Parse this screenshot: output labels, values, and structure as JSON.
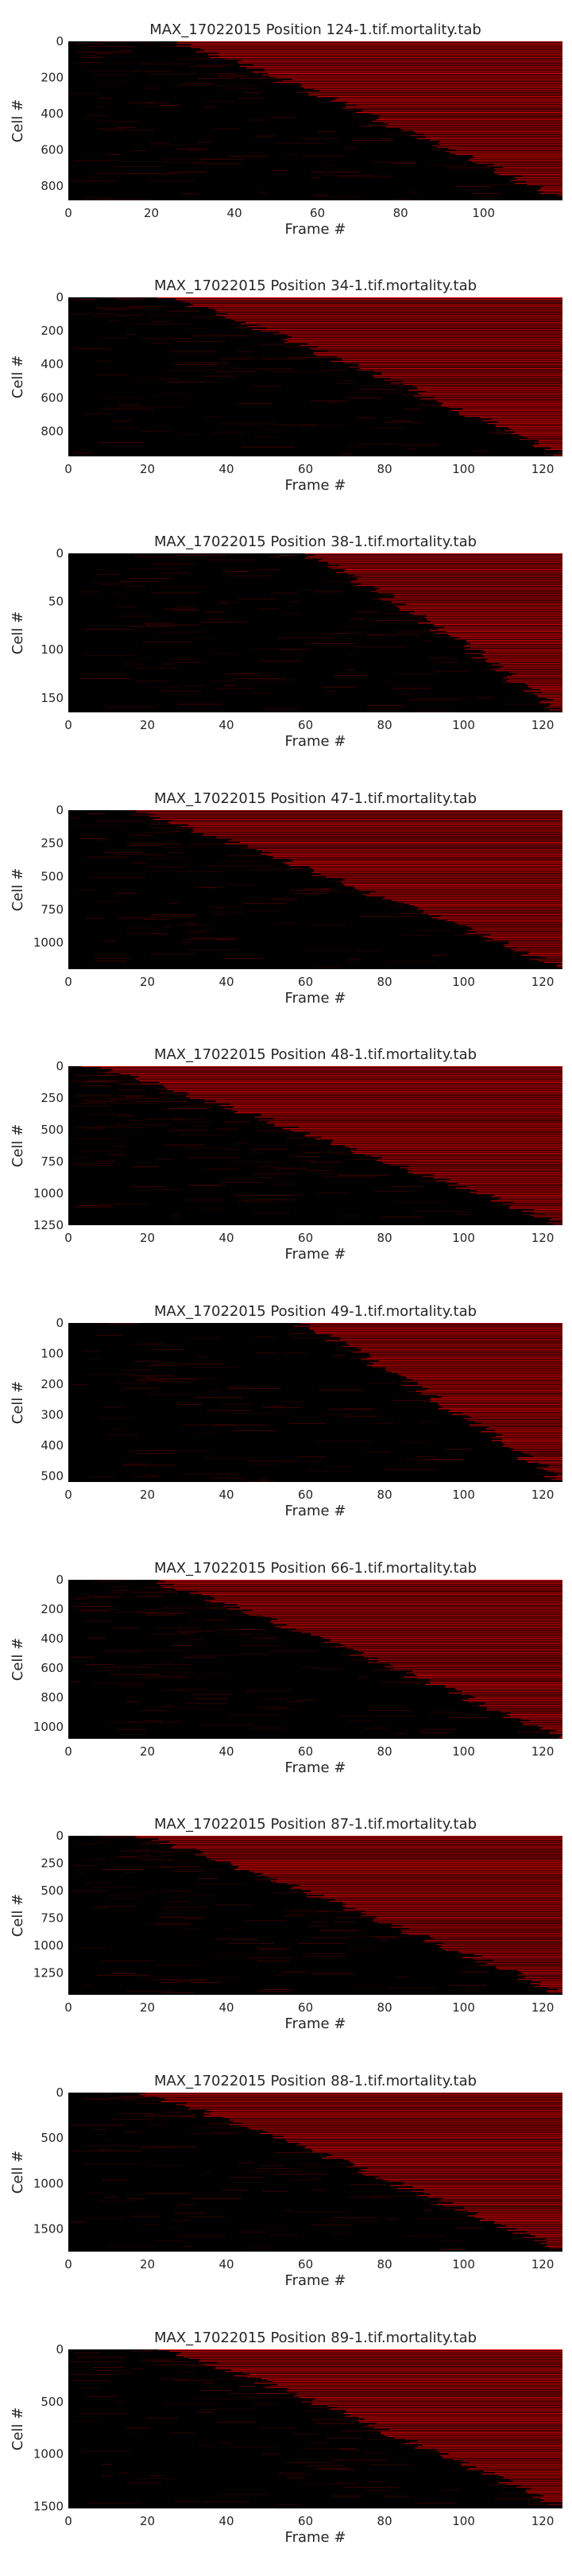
{
  "colors": {
    "background": "#000000",
    "signal": "#ff0000",
    "text": "#262626"
  },
  "chart_data": [
    {
      "type": "heatmap",
      "title": "MAX_17022015 Position 124-1.tif.mortality.tab",
      "xlabel": "Frame #",
      "ylabel": "Cell #",
      "xlim": [
        0,
        119
      ],
      "ylim": [
        0,
        880
      ],
      "x_ticks": [
        0,
        20,
        40,
        60,
        80,
        100
      ],
      "y_ticks": [
        0,
        200,
        400,
        600,
        800
      ],
      "death_frame_range": [
        25,
        119
      ]
    },
    {
      "type": "heatmap",
      "title": "MAX_17022015 Position 34-1.tif.mortality.tab",
      "xlabel": "Frame #",
      "ylabel": "Cell #",
      "xlim": [
        0,
        125
      ],
      "ylim": [
        0,
        950
      ],
      "x_ticks": [
        0,
        20,
        40,
        60,
        80,
        100,
        120
      ],
      "y_ticks": [
        0,
        200,
        400,
        600,
        800
      ],
      "death_frame_range": [
        25,
        125
      ]
    },
    {
      "type": "heatmap",
      "title": "MAX_17022015 Position 38-1.tif.mortality.tab",
      "xlabel": "Frame #",
      "ylabel": "Cell #",
      "xlim": [
        0,
        125
      ],
      "ylim": [
        0,
        165
      ],
      "x_ticks": [
        0,
        20,
        40,
        60,
        80,
        100,
        120
      ],
      "y_ticks": [
        0,
        50,
        100,
        150
      ],
      "death_frame_range": [
        60,
        125
      ]
    },
    {
      "type": "heatmap",
      "title": "MAX_17022015 Position 47-1.tif.mortality.tab",
      "xlabel": "Frame #",
      "ylabel": "Cell #",
      "xlim": [
        0,
        125
      ],
      "ylim": [
        0,
        1200
      ],
      "x_ticks": [
        0,
        20,
        40,
        60,
        80,
        100,
        120
      ],
      "y_ticks": [
        0,
        250,
        500,
        750,
        1000
      ],
      "death_frame_range": [
        15,
        125
      ]
    },
    {
      "type": "heatmap",
      "title": "MAX_17022015 Position 48-1.tif.mortality.tab",
      "xlabel": "Frame #",
      "ylabel": "Cell #",
      "xlim": [
        0,
        125
      ],
      "ylim": [
        0,
        1250
      ],
      "x_ticks": [
        0,
        20,
        40,
        60,
        80,
        100,
        120
      ],
      "y_ticks": [
        0,
        250,
        500,
        750,
        1000,
        1250
      ],
      "death_frame_range": [
        5,
        125
      ]
    },
    {
      "type": "heatmap",
      "title": "MAX_17022015 Position 49-1.tif.mortality.tab",
      "xlabel": "Frame #",
      "ylabel": "Cell #",
      "xlim": [
        0,
        125
      ],
      "ylim": [
        0,
        520
      ],
      "x_ticks": [
        0,
        20,
        40,
        60,
        80,
        100,
        120
      ],
      "y_ticks": [
        0,
        100,
        200,
        300,
        400,
        500
      ],
      "death_frame_range": [
        58,
        125
      ]
    },
    {
      "type": "heatmap",
      "title": "MAX_17022015 Position 66-1.tif.mortality.tab",
      "xlabel": "Frame #",
      "ylabel": "Cell #",
      "xlim": [
        0,
        125
      ],
      "ylim": [
        0,
        1080
      ],
      "x_ticks": [
        0,
        20,
        40,
        60,
        80,
        100,
        120
      ],
      "y_ticks": [
        0,
        200,
        400,
        600,
        800,
        1000
      ],
      "death_frame_range": [
        20,
        125
      ]
    },
    {
      "type": "heatmap",
      "title": "MAX_17022015 Position 87-1.tif.mortality.tab",
      "xlabel": "Frame #",
      "ylabel": "Cell #",
      "xlim": [
        0,
        125
      ],
      "ylim": [
        0,
        1450
      ],
      "x_ticks": [
        0,
        20,
        40,
        60,
        80,
        100,
        120
      ],
      "y_ticks": [
        0,
        250,
        500,
        750,
        1000,
        1250
      ],
      "death_frame_range": [
        18,
        125
      ]
    },
    {
      "type": "heatmap",
      "title": "MAX_17022015 Position 88-1.tif.mortality.tab",
      "xlabel": "Frame #",
      "ylabel": "Cell #",
      "xlim": [
        0,
        125
      ],
      "ylim": [
        0,
        1750
      ],
      "x_ticks": [
        0,
        20,
        40,
        60,
        80,
        100,
        120
      ],
      "y_ticks": [
        0,
        500,
        1000,
        1500
      ],
      "death_frame_range": [
        18,
        125
      ]
    },
    {
      "type": "heatmap",
      "title": "MAX_17022015 Position 89-1.tif.mortality.tab",
      "xlabel": "Frame #",
      "ylabel": "Cell #",
      "xlim": [
        0,
        125
      ],
      "ylim": [
        0,
        1520
      ],
      "x_ticks": [
        0,
        20,
        40,
        60,
        80,
        100,
        120
      ],
      "y_ticks": [
        0,
        500,
        1000,
        1500
      ],
      "death_frame_range": [
        25,
        125
      ]
    }
  ]
}
